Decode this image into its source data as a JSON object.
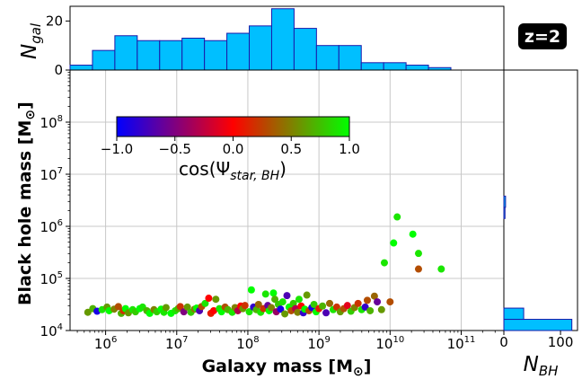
{
  "chart_data": [
    {
      "type": "scatter",
      "id": "main",
      "xscale": "log",
      "yscale": "log",
      "xlim_log10": [
        5.5,
        11.6
      ],
      "ylim_log10": [
        4.0,
        9.0
      ],
      "xlabel": "Galaxy mass [M",
      "xlabel_sub": "⊙",
      "xlabel_end": "]",
      "ylabel": "Black hole mass [M",
      "ylabel_sub": "⊙",
      "ylabel_end": "]",
      "xticks": [
        {
          "log": 6,
          "base": "10",
          "exp": "6"
        },
        {
          "log": 7,
          "base": "10",
          "exp": "7"
        },
        {
          "log": 8,
          "base": "10",
          "exp": "8"
        },
        {
          "log": 9,
          "base": "10",
          "exp": "9"
        },
        {
          "log": 10,
          "base": "10",
          "exp": "10"
        },
        {
          "log": 11,
          "base": "10",
          "exp": "11"
        }
      ],
      "yticks": [
        {
          "log": 4,
          "base": "10",
          "exp": "4"
        },
        {
          "log": 5,
          "base": "10",
          "exp": "5"
        },
        {
          "log": 6,
          "base": "10",
          "exp": "6"
        },
        {
          "log": 7,
          "base": "10",
          "exp": "7"
        },
        {
          "log": 8,
          "base": "10",
          "exp": "8"
        }
      ],
      "grid": true,
      "color_label": "cos(Ψ",
      "color_label_sub": "star, BH",
      "color_label_end": ")",
      "colorbar_ticks": [
        "−1.0",
        "−0.5",
        "0.0",
        "0.5",
        "1.0"
      ],
      "points": [
        {
          "x": 5.75,
          "y": 4.35,
          "c": 0.6
        },
        {
          "x": 5.82,
          "y": 4.42,
          "c": 0.7
        },
        {
          "x": 5.88,
          "y": 4.37,
          "c": -0.9
        },
        {
          "x": 5.95,
          "y": 4.4,
          "c": 0.9
        },
        {
          "x": 6.02,
          "y": 4.45,
          "c": 0.6
        },
        {
          "x": 6.05,
          "y": 4.38,
          "c": 1.0
        },
        {
          "x": 6.12,
          "y": 4.41,
          "c": 0.5
        },
        {
          "x": 6.18,
          "y": 4.46,
          "c": 0.3
        },
        {
          "x": 6.22,
          "y": 4.33,
          "c": 0.7
        },
        {
          "x": 6.25,
          "y": 4.38,
          "c": 0.2
        },
        {
          "x": 6.28,
          "y": 4.42,
          "c": 1.0
        },
        {
          "x": 6.32,
          "y": 4.34,
          "c": 0.6
        },
        {
          "x": 6.38,
          "y": 4.4,
          "c": 0.9
        },
        {
          "x": 6.42,
          "y": 4.36,
          "c": 0.8
        },
        {
          "x": 6.48,
          "y": 4.42,
          "c": 1.0
        },
        {
          "x": 6.52,
          "y": 4.45,
          "c": 0.9
        },
        {
          "x": 6.58,
          "y": 4.38,
          "c": 0.7
        },
        {
          "x": 6.62,
          "y": 4.33,
          "c": 1.0
        },
        {
          "x": 6.68,
          "y": 4.4,
          "c": 0.5
        },
        {
          "x": 6.72,
          "y": 4.36,
          "c": 0.8
        },
        {
          "x": 6.78,
          "y": 4.41,
          "c": 1.0
        },
        {
          "x": 6.82,
          "y": 4.35,
          "c": 0.9
        },
        {
          "x": 6.85,
          "y": 4.44,
          "c": 0.6
        },
        {
          "x": 6.92,
          "y": 4.33,
          "c": 1.0
        },
        {
          "x": 6.98,
          "y": 4.38,
          "c": 0.9
        },
        {
          "x": 7.02,
          "y": 4.42,
          "c": 0.7
        },
        {
          "x": 7.05,
          "y": 4.46,
          "c": 0.2
        },
        {
          "x": 7.1,
          "y": 4.36,
          "c": -0.5
        },
        {
          "x": 7.15,
          "y": 4.45,
          "c": 0.6
        },
        {
          "x": 7.2,
          "y": 4.35,
          "c": 0.8
        },
        {
          "x": 7.25,
          "y": 4.41,
          "c": 0.5
        },
        {
          "x": 7.28,
          "y": 4.43,
          "c": 1.0
        },
        {
          "x": 7.32,
          "y": 4.38,
          "c": -0.7
        },
        {
          "x": 7.35,
          "y": 4.46,
          "c": 0.3
        },
        {
          "x": 7.4,
          "y": 4.52,
          "c": 0.9
        },
        {
          "x": 7.45,
          "y": 4.62,
          "c": 0.0
        },
        {
          "x": 7.48,
          "y": 4.33,
          "c": 0.1
        },
        {
          "x": 7.52,
          "y": 4.38,
          "c": 0.0
        },
        {
          "x": 7.55,
          "y": 4.6,
          "c": 0.6
        },
        {
          "x": 7.6,
          "y": 4.42,
          "c": 0.9
        },
        {
          "x": 7.63,
          "y": 4.36,
          "c": 1.0
        },
        {
          "x": 7.68,
          "y": 4.45,
          "c": 0.3
        },
        {
          "x": 7.72,
          "y": 4.4,
          "c": 0.7
        },
        {
          "x": 7.78,
          "y": 4.35,
          "c": 0.9
        },
        {
          "x": 7.82,
          "y": 4.44,
          "c": 0.5
        },
        {
          "x": 7.86,
          "y": 4.38,
          "c": -0.3
        },
        {
          "x": 7.9,
          "y": 4.47,
          "c": 0.0
        },
        {
          "x": 7.93,
          "y": 4.42,
          "c": 0.6
        },
        {
          "x": 7.96,
          "y": 4.48,
          "c": 0.2
        },
        {
          "x": 8.02,
          "y": 4.36,
          "c": 0.9
        },
        {
          "x": 8.05,
          "y": 4.78,
          "c": 1.0
        },
        {
          "x": 8.08,
          "y": 4.45,
          "c": -0.8
        },
        {
          "x": 8.12,
          "y": 4.4,
          "c": 0.7
        },
        {
          "x": 8.15,
          "y": 4.5,
          "c": 0.4
        },
        {
          "x": 8.18,
          "y": 4.35,
          "c": 0.9
        },
        {
          "x": 8.22,
          "y": 4.42,
          "c": 0.2
        },
        {
          "x": 8.25,
          "y": 4.7,
          "c": 0.9
        },
        {
          "x": 8.28,
          "y": 4.48,
          "c": -0.6
        },
        {
          "x": 8.3,
          "y": 4.38,
          "c": 1.0
        },
        {
          "x": 8.33,
          "y": 4.44,
          "c": 0.5
        },
        {
          "x": 8.36,
          "y": 4.72,
          "c": 1.0
        },
        {
          "x": 8.38,
          "y": 4.6,
          "c": 0.7
        },
        {
          "x": 8.4,
          "y": 4.36,
          "c": -0.4
        },
        {
          "x": 8.43,
          "y": 4.5,
          "c": 0.8
        },
        {
          "x": 8.46,
          "y": 4.41,
          "c": -0.9
        },
        {
          "x": 8.49,
          "y": 4.55,
          "c": 0.9
        },
        {
          "x": 8.52,
          "y": 4.32,
          "c": 0.6
        },
        {
          "x": 8.55,
          "y": 4.67,
          "c": -0.7
        },
        {
          "x": 8.58,
          "y": 4.45,
          "c": 1.0
        },
        {
          "x": 8.61,
          "y": 4.38,
          "c": 0.3
        },
        {
          "x": 8.64,
          "y": 4.52,
          "c": 0.8
        },
        {
          "x": 8.67,
          "y": 4.42,
          "c": -0.3
        },
        {
          "x": 8.7,
          "y": 4.35,
          "c": 0.5
        },
        {
          "x": 8.72,
          "y": 4.6,
          "c": 0.9
        },
        {
          "x": 8.75,
          "y": 4.47,
          "c": 0.0
        },
        {
          "x": 8.78,
          "y": 4.34,
          "c": -0.8
        },
        {
          "x": 8.8,
          "y": 4.41,
          "c": 1.0
        },
        {
          "x": 8.83,
          "y": 4.68,
          "c": 0.6
        },
        {
          "x": 8.86,
          "y": 4.38,
          "c": 0.3
        },
        {
          "x": 8.9,
          "y": 4.44,
          "c": -0.9
        },
        {
          "x": 8.93,
          "y": 4.5,
          "c": 0.8
        },
        {
          "x": 8.96,
          "y": 4.36,
          "c": 1.0
        },
        {
          "x": 9.0,
          "y": 4.42,
          "c": 0.1
        },
        {
          "x": 9.05,
          "y": 4.47,
          "c": 0.7
        },
        {
          "x": 9.1,
          "y": 4.34,
          "c": -0.7
        },
        {
          "x": 9.15,
          "y": 4.52,
          "c": 0.4
        },
        {
          "x": 9.2,
          "y": 4.4,
          "c": 0.9
        },
        {
          "x": 9.25,
          "y": 4.45,
          "c": 0.2
        },
        {
          "x": 9.3,
          "y": 4.36,
          "c": 0.6
        },
        {
          "x": 9.35,
          "y": 4.42,
          "c": 0.3
        },
        {
          "x": 9.4,
          "y": 4.48,
          "c": -0.1
        },
        {
          "x": 9.45,
          "y": 4.37,
          "c": 0.8
        },
        {
          "x": 9.5,
          "y": 4.44,
          "c": 0.5
        },
        {
          "x": 9.55,
          "y": 4.52,
          "c": 0.2
        },
        {
          "x": 9.6,
          "y": 4.4,
          "c": 0.9
        },
        {
          "x": 9.65,
          "y": 4.45,
          "c": -0.8
        },
        {
          "x": 9.68,
          "y": 4.58,
          "c": 0.3
        },
        {
          "x": 9.72,
          "y": 4.38,
          "c": 0.7
        },
        {
          "x": 9.78,
          "y": 4.66,
          "c": 0.4
        },
        {
          "x": 9.82,
          "y": 4.55,
          "c": -0.6
        },
        {
          "x": 9.88,
          "y": 4.4,
          "c": 0.6
        },
        {
          "x": 9.92,
          "y": 5.3,
          "c": 0.9
        },
        {
          "x": 10.0,
          "y": 4.55,
          "c": 0.3
        },
        {
          "x": 10.05,
          "y": 5.68,
          "c": 1.0
        },
        {
          "x": 10.1,
          "y": 6.18,
          "c": 0.9
        },
        {
          "x": 10.32,
          "y": 5.85,
          "c": 1.0
        },
        {
          "x": 10.4,
          "y": 5.48,
          "c": 0.9
        },
        {
          "x": 10.4,
          "y": 5.18,
          "c": 0.3
        },
        {
          "x": 10.72,
          "y": 5.18,
          "c": 0.9
        }
      ]
    },
    {
      "type": "histogram",
      "id": "top",
      "orientation": "vertical",
      "ylabel": "N",
      "ylabel_sub": "gal",
      "yticks": [
        "0",
        "20"
      ],
      "ymax": 26,
      "bin_start_log10": 5.5,
      "bin_width_log10": 0.315,
      "counts": [
        2,
        8,
        14,
        12,
        12,
        13,
        12,
        15,
        18,
        25,
        17,
        10,
        10,
        3,
        3,
        2,
        1
      ]
    },
    {
      "type": "histogram",
      "id": "right",
      "orientation": "horizontal",
      "xlabel": "N",
      "xlabel_sub": "BH",
      "xticks": [
        "0",
        "100"
      ],
      "xmax": 130,
      "bin_start_log10": 4.0,
      "bin_width_log10": 0.215,
      "counts": [
        120,
        35,
        0,
        0,
        0,
        0,
        0,
        0,
        0,
        0,
        2,
        3,
        0,
        0,
        0,
        0,
        0,
        0,
        0,
        0,
        0,
        0,
        0
      ],
      "annotation": "z=2"
    }
  ],
  "colors": {
    "hist_fill": "#00bfff",
    "hist_edge": "#1a1aaa",
    "grid": "#c8c8c8",
    "badge": "#000000"
  }
}
